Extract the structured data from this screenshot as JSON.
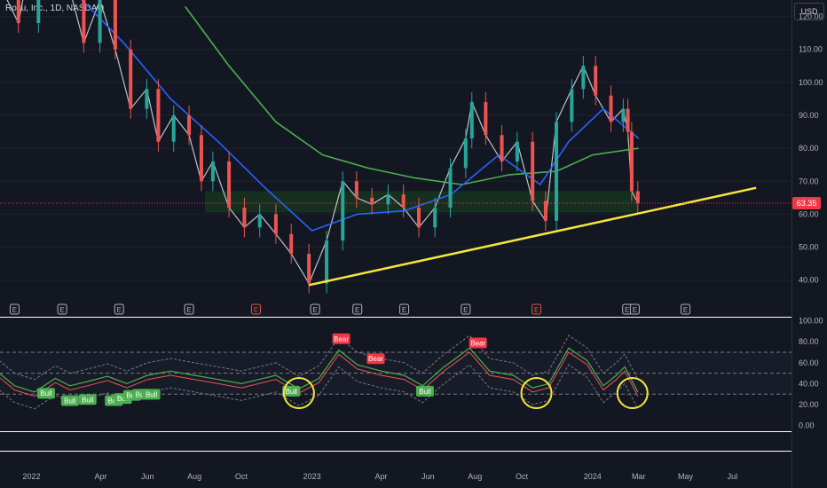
{
  "header": {
    "title": "Roku, Inc., 1D, NASDAQ",
    "currency": "USD"
  },
  "colors": {
    "background": "#131722",
    "grid": "#1e222d",
    "axis_text": "#b2b5be",
    "up": "#26a69a",
    "down": "#ef5350",
    "sma200": "#4caf50",
    "sma50": "#2962ff",
    "ema": "#ff9800",
    "trendline": "#f5e63a",
    "last_price": "#f23645",
    "highlight": "#f5e63a",
    "bull": "#4caf50",
    "bear": "#f23645"
  },
  "chart_data": [
    {
      "type": "line",
      "name": "price",
      "y_ticks": [
        "40.00",
        "50.00",
        "60.00",
        "70.00",
        "80.00",
        "90.00",
        "100.00",
        "110.00",
        "120.00"
      ],
      "ylim": [
        34,
        125
      ],
      "x_ticks": [
        "2022",
        "Apr",
        "Jun",
        "Aug",
        "Oct",
        "2023",
        "Apr",
        "Jun",
        "Aug",
        "Oct",
        "2024",
        "Mar",
        "May",
        "Jul"
      ],
      "last_price": "63.35",
      "series": [
        {
          "values": [
            {
              "d": "2021-11-20",
              "v": 130
            },
            {
              "d": "2021-12-15",
              "v": 118
            },
            {
              "d": "2022-01-10",
              "v": 150
            },
            {
              "d": "2022-02-01",
              "v": 140
            },
            {
              "d": "2022-02-20",
              "v": 128
            },
            {
              "d": "2022-03-10",
              "v": 112
            },
            {
              "d": "2022-03-31",
              "v": 125
            },
            {
              "d": "2022-04-20",
              "v": 110
            },
            {
              "d": "2022-05-10",
              "v": 92
            },
            {
              "d": "2022-05-31",
              "v": 98
            },
            {
              "d": "2022-06-15",
              "v": 82
            },
            {
              "d": "2022-07-05",
              "v": 90
            },
            {
              "d": "2022-07-25",
              "v": 84
            },
            {
              "d": "2022-08-10",
              "v": 70
            },
            {
              "d": "2022-08-25",
              "v": 76
            },
            {
              "d": "2022-09-15",
              "v": 62
            },
            {
              "d": "2022-10-05",
              "v": 56
            },
            {
              "d": "2022-10-25",
              "v": 60
            },
            {
              "d": "2022-11-15",
              "v": 54
            },
            {
              "d": "2022-12-05",
              "v": 48
            },
            {
              "d": "2022-12-28",
              "v": 39
            },
            {
              "d": "2023-01-20",
              "v": 52
            },
            {
              "d": "2023-02-10",
              "v": 70
            },
            {
              "d": "2023-02-28",
              "v": 65
            },
            {
              "d": "2023-03-20",
              "v": 63
            },
            {
              "d": "2023-04-10",
              "v": 66
            },
            {
              "d": "2023-04-30",
              "v": 62
            },
            {
              "d": "2023-05-20",
              "v": 56
            },
            {
              "d": "2023-06-10",
              "v": 62
            },
            {
              "d": "2023-06-30",
              "v": 74
            },
            {
              "d": "2023-07-20",
              "v": 83
            },
            {
              "d": "2023-07-28",
              "v": 94
            },
            {
              "d": "2023-08-15",
              "v": 84
            },
            {
              "d": "2023-09-05",
              "v": 76
            },
            {
              "d": "2023-09-25",
              "v": 82
            },
            {
              "d": "2023-10-15",
              "v": 64
            },
            {
              "d": "2023-11-01",
              "v": 58
            },
            {
              "d": "2023-11-15",
              "v": 88
            },
            {
              "d": "2023-12-05",
              "v": 98
            },
            {
              "d": "2023-12-20",
              "v": 105
            },
            {
              "d": "2024-01-05",
              "v": 96
            },
            {
              "d": "2024-01-25",
              "v": 88
            },
            {
              "d": "2024-02-10",
              "v": 92
            },
            {
              "d": "2024-02-16",
              "v": 85
            },
            {
              "d": "2024-02-21",
              "v": 67
            },
            {
              "d": "2024-02-29",
              "v": 63.35
            }
          ]
        },
        {
          "name": "sma200",
          "values": [
            {
              "d": "2022-07-20",
              "v": 123
            },
            {
              "d": "2022-09-15",
              "v": 105
            },
            {
              "d": "2022-11-15",
              "v": 88
            },
            {
              "d": "2023-01-15",
              "v": 78
            },
            {
              "d": "2023-03-15",
              "v": 74
            },
            {
              "d": "2023-05-15",
              "v": 71
            },
            {
              "d": "2023-07-15",
              "v": 69
            },
            {
              "d": "2023-09-15",
              "v": 72
            },
            {
              "d": "2023-11-15",
              "v": 73
            },
            {
              "d": "2024-01-01",
              "v": 78
            },
            {
              "d": "2024-03-01",
              "v": 80
            }
          ]
        },
        {
          "name": "sma50",
          "values": [
            {
              "d": "2022-02-15",
              "v": 130
            },
            {
              "d": "2022-05-01",
              "v": 112
            },
            {
              "d": "2022-07-01",
              "v": 95
            },
            {
              "d": "2022-09-01",
              "v": 82
            },
            {
              "d": "2022-11-01",
              "v": 68
            },
            {
              "d": "2023-01-01",
              "v": 55
            },
            {
              "d": "2023-03-01",
              "v": 60
            },
            {
              "d": "2023-05-01",
              "v": 61
            },
            {
              "d": "2023-07-01",
              "v": 66
            },
            {
              "d": "2023-09-01",
              "v": 78
            },
            {
              "d": "2023-10-25",
              "v": 69
            },
            {
              "d": "2023-12-01",
              "v": 82
            },
            {
              "d": "2024-01-15",
              "v": 92
            },
            {
              "d": "2024-03-01",
              "v": 83
            }
          ]
        }
      ],
      "trendline": {
        "from": {
          "d": "2022-12-28",
          "v": 38.5
        },
        "to": {
          "d": "2024-08-01",
          "v": 68
        }
      },
      "support_zone": {
        "from_date": "2022-08-15",
        "to_date": "2024-02-29",
        "low": 60.5,
        "high": 67
      },
      "event_markers": [
        "E",
        "E",
        "E",
        "E",
        "E",
        "E",
        "E",
        "E",
        "E",
        "E",
        "E",
        "E",
        "E"
      ],
      "event_marker_dates": [
        "2021-12-10",
        "2022-02-10",
        "2022-04-25",
        "2022-07-25",
        "2022-10-20",
        "2023-01-05",
        "2023-03-01",
        "2023-05-01",
        "2023-07-20",
        "2023-10-20",
        "2024-02-15",
        "2024-02-25",
        "2024-05-01"
      ]
    },
    {
      "type": "line",
      "name": "oscillator",
      "y_ticks": [
        "0.00",
        "20.00",
        "40.00",
        "60.00",
        "80.00",
        "100.00"
      ],
      "ylim": [
        -2,
        103
      ],
      "levels": [
        30,
        50,
        70
      ],
      "series": [
        {
          "values": [
            {
              "d": "2021-11-20",
              "v": 50
            },
            {
              "d": "2021-12-10",
              "v": 38
            },
            {
              "d": "2022-01-05",
              "v": 32
            },
            {
              "d": "2022-02-01",
              "v": 45
            },
            {
              "d": "2022-02-20",
              "v": 38
            },
            {
              "d": "2022-03-15",
              "v": 42
            },
            {
              "d": "2022-04-10",
              "v": 47
            },
            {
              "d": "2022-05-05",
              "v": 40
            },
            {
              "d": "2022-06-01",
              "v": 48
            },
            {
              "d": "2022-07-01",
              "v": 52
            },
            {
              "d": "2022-08-01",
              "v": 48
            },
            {
              "d": "2022-09-01",
              "v": 44
            },
            {
              "d": "2022-10-01",
              "v": 40
            },
            {
              "d": "2022-11-15",
              "v": 48
            },
            {
              "d": "2022-12-15",
              "v": 35
            },
            {
              "d": "2023-01-10",
              "v": 45
            },
            {
              "d": "2023-02-05",
              "v": 72
            },
            {
              "d": "2023-03-01",
              "v": 58
            },
            {
              "d": "2023-04-01",
              "v": 52
            },
            {
              "d": "2023-05-01",
              "v": 48
            },
            {
              "d": "2023-05-25",
              "v": 38
            },
            {
              "d": "2023-06-20",
              "v": 55
            },
            {
              "d": "2023-07-25",
              "v": 74
            },
            {
              "d": "2023-08-20",
              "v": 52
            },
            {
              "d": "2023-09-20",
              "v": 48
            },
            {
              "d": "2023-10-15",
              "v": 36
            },
            {
              "d": "2023-11-05",
              "v": 40
            },
            {
              "d": "2023-12-01",
              "v": 74
            },
            {
              "d": "2023-12-25",
              "v": 62
            },
            {
              "d": "2024-01-15",
              "v": 38
            },
            {
              "d": "2024-02-01",
              "v": 48
            },
            {
              "d": "2024-02-12",
              "v": 56
            },
            {
              "d": "2024-02-29",
              "v": 32
            }
          ]
        }
      ],
      "labels": [
        {
          "text": "Bull",
          "d": "2022-01-20",
          "v": 30
        },
        {
          "text": "Bull",
          "d": "2022-02-20",
          "v": 23
        },
        {
          "text": "Bull",
          "d": "2022-03-15",
          "v": 24
        },
        {
          "text": "Bull",
          "d": "2022-04-18",
          "v": 23
        },
        {
          "text": "Bull",
          "d": "2022-04-30",
          "v": 25
        },
        {
          "text": "Bull",
          "d": "2022-05-12",
          "v": 28
        },
        {
          "text": "Bull",
          "d": "2022-05-24",
          "v": 29
        },
        {
          "text": "Bull",
          "d": "2022-06-06",
          "v": 29
        },
        {
          "text": "Bull",
          "d": "2022-12-05",
          "v": 32
        },
        {
          "text": "Bull",
          "d": "2023-05-28",
          "v": 32
        },
        {
          "text": "Bear",
          "d": "2023-02-08",
          "v": 82
        },
        {
          "text": "Bear",
          "d": "2023-03-25",
          "v": 63
        },
        {
          "text": "Bear",
          "d": "2023-08-05",
          "v": 78
        }
      ],
      "highlights": [
        {
          "d": "2022-12-15",
          "v": 31
        },
        {
          "d": "2023-10-20",
          "v": 31
        },
        {
          "d": "2024-02-22",
          "v": 31
        }
      ]
    }
  ]
}
